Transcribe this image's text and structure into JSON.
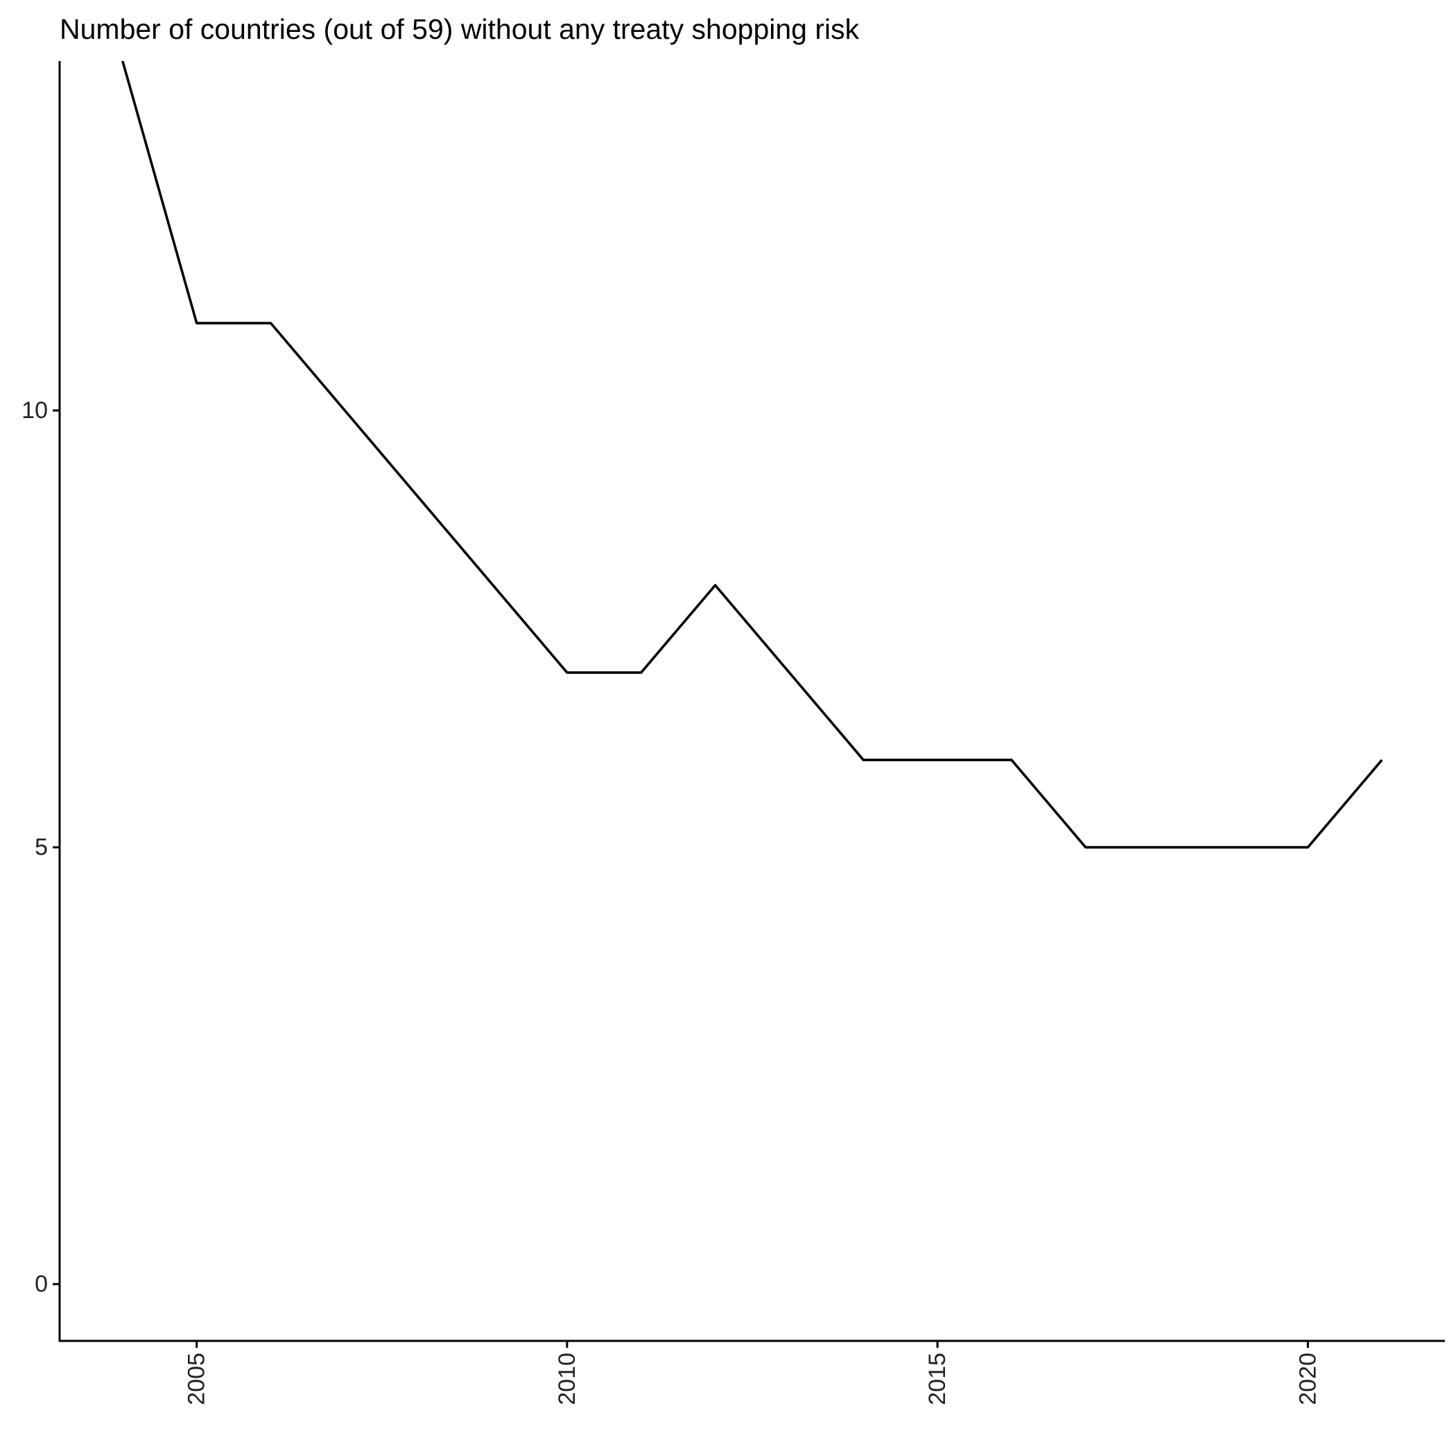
{
  "chart_data": {
    "type": "line",
    "title": "Number of countries (out of 59) without any treaty shopping risk",
    "xlabel": "",
    "ylabel": "",
    "x": [
      2004,
      2005,
      2006,
      2007,
      2008,
      2009,
      2010,
      2011,
      2012,
      2013,
      2014,
      2015,
      2016,
      2017,
      2018,
      2019,
      2020,
      2021
    ],
    "series": [
      {
        "values": [
          14,
          11,
          11,
          10,
          9,
          8,
          7,
          7,
          8,
          7,
          6,
          6,
          6,
          5,
          5,
          5,
          5,
          6
        ],
        "color": "#000000"
      }
    ],
    "xlim": [
      2003.15,
      2021.85
    ],
    "ylim": [
      -0.65,
      14.0
    ],
    "xticks": [
      2005,
      2010,
      2015,
      2020
    ],
    "xtick_labels": [
      "2005",
      "2010",
      "2015",
      "2020"
    ],
    "yticks": [
      0,
      5,
      10
    ],
    "ytick_labels": [
      "0",
      "5",
      "10"
    ],
    "xtick_rotation": -90,
    "grid": false,
    "legend": "none"
  }
}
